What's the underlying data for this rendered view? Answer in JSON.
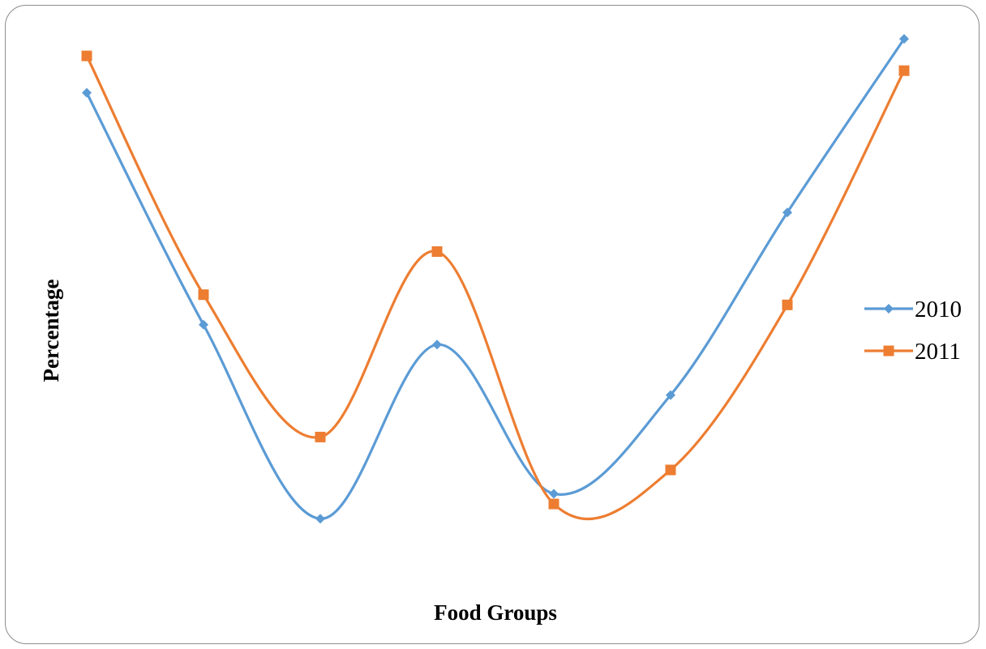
{
  "chart_data": {
    "type": "line",
    "title": "",
    "xlabel": "Food Groups",
    "ylabel": "Percentage",
    "x": [
      1,
      2,
      3,
      4,
      5,
      6,
      7,
      8
    ],
    "ylim": [
      0,
      100
    ],
    "grid": false,
    "smooth": true,
    "legend_position": "right",
    "series": [
      {
        "name": "2010",
        "color": "#5b9bd5",
        "marker": "diamond",
        "values": [
          86.5,
          45.6,
          11.4,
          42.1,
          15.8,
          33.2,
          65.4,
          96.0
        ]
      },
      {
        "name": "2011",
        "color": "#ed7d31",
        "marker": "square",
        "values": [
          93.0,
          50.9,
          25.8,
          58.5,
          14.0,
          20.0,
          49.1,
          90.4
        ]
      }
    ]
  }
}
